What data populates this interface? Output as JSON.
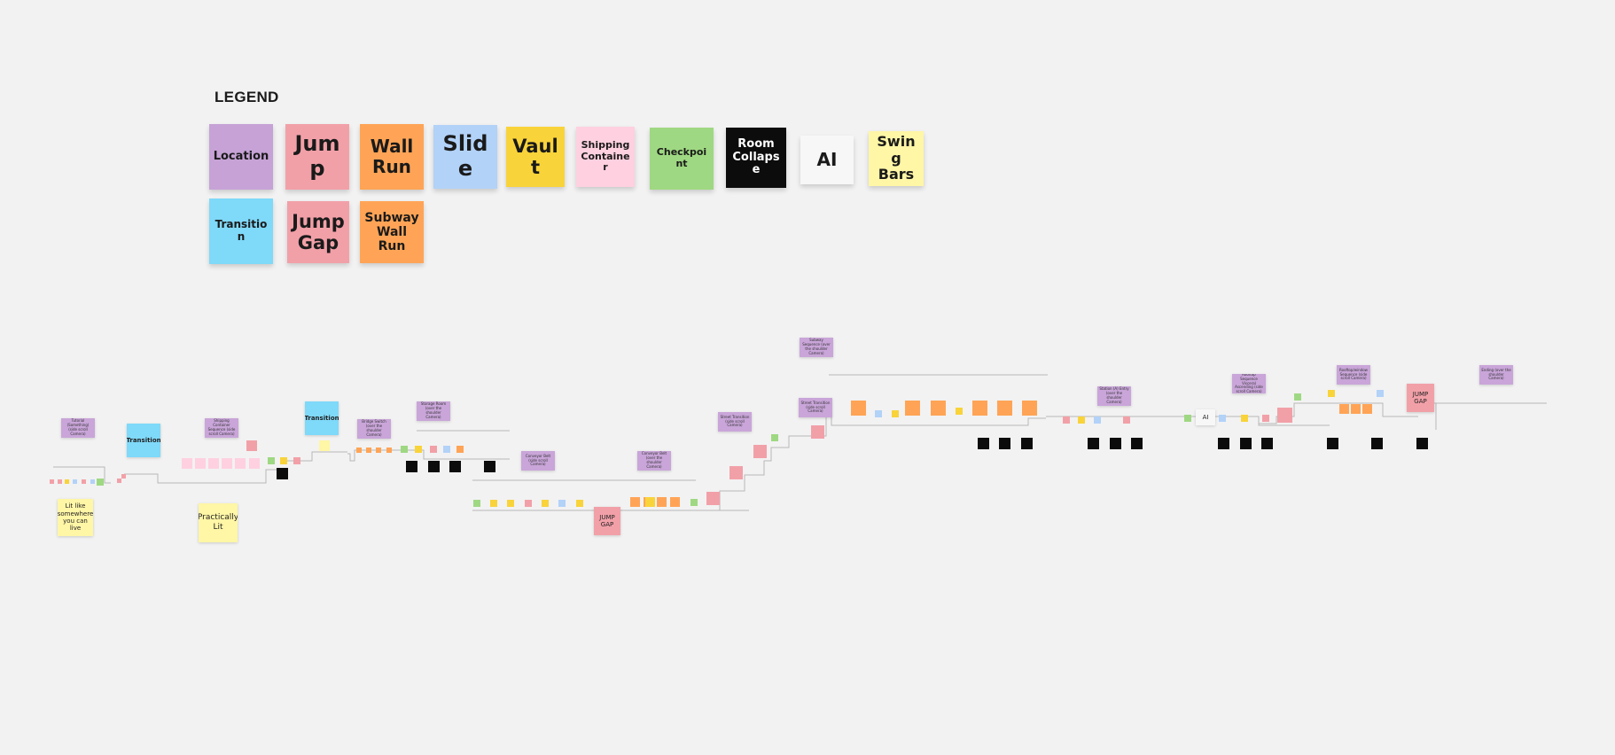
{
  "legend": {
    "title": "LEGEND",
    "items": [
      {
        "label": "Location",
        "color": "#c6a2d6",
        "fs": 13
      },
      {
        "label": "Jump",
        "color": "#f2a0a8",
        "fs": 24
      },
      {
        "label": "Wall Run",
        "color": "#ffa456",
        "fs": 20
      },
      {
        "label": "Slide",
        "color": "#b2d2f8",
        "fs": 24
      },
      {
        "label": "Vault",
        "color": "#f9d33a",
        "fs": 21
      },
      {
        "label": "Shipping Container",
        "color": "#ffd0e0",
        "fs": 11
      },
      {
        "label": "Checkpoint",
        "color": "#9fd882",
        "fs": 11
      },
      {
        "label": "Room Collapse",
        "color": "#0c0c0c",
        "fs": 13
      },
      {
        "label": "AI",
        "color": "#f7f7f7",
        "fs": 20
      },
      {
        "label": "Swing Bars",
        "color": "#fff6a6",
        "fs": 16
      },
      {
        "label": "Transition",
        "color": "#7fd9f9",
        "fs": 12
      },
      {
        "label": "Jump Gap",
        "color": "#f2a0a8",
        "fs": 21
      },
      {
        "label": "Subway Wall Run",
        "color": "#ffa456",
        "fs": 14
      }
    ]
  },
  "notes": {
    "lit_like": "Lit like somewhere you can live",
    "practically_lit": "Practically Lit",
    "transition_1": "Transition",
    "transition_2": "Transition",
    "tutorial": "Tutorial (Something) (side scroll Camera)",
    "shipping_sequence": "Shipping Container Sequence (side scroll Camera)",
    "bridge_switch": "Bridge Switch (over the shoulder Camera)",
    "storage_room": "Storage Room (over the shoulder Camera)",
    "conveyor_belt_1": "Conveyor Belt (side scroll Camera)",
    "conveyor_belt_2": "Conveyor Belt (over the shoulder Camera)",
    "jump_gap_1": "JUMP GAP",
    "jump_gap_2": "JUMP GAP",
    "street_transition": "Street Transition (side scroll Camera)",
    "subway_sequence": "Subway Sequence (over the shoulder Camera)",
    "street_transition_2": "Street Transition (side scroll Camera)",
    "station_top": "Station (A) Entry (over the shoulder Camera)",
    "rooftop_sequence": "Rooftop Sequence Visceral Ascending (side scroll Camera)",
    "escape_sequence": "Rooftop/window Sequence (side scroll Camera)",
    "ending": "Ending (over the shoulder Camera)",
    "ai_marker": "AI",
    "subway_wall_run": "Subway Wall Run"
  }
}
